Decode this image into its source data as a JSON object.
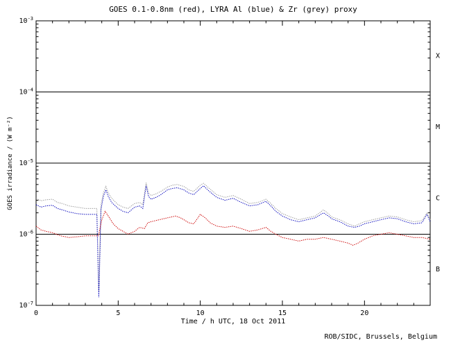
{
  "footer": {
    "text": "ROB/SIDC, Brussels, Belgium"
  },
  "chart_data": {
    "type": "line",
    "title": "GOES 0.1-0.8nm (red), LYRA Al (blue) & Zr (grey) proxy",
    "xlabel": "Time / h UTC, 18 Oct 2011",
    "ylabel": "GOES irradiance / (W m⁻²)",
    "x_range": [
      0,
      24
    ],
    "y_range": [
      1e-07,
      0.001
    ],
    "y_scale": "log",
    "grid": false,
    "x_ticks_major": [
      0,
      5,
      10,
      15,
      20
    ],
    "x_tick_labels": [
      "0",
      "5",
      "10",
      "15",
      "20"
    ],
    "x_minor_step": 1,
    "y_tick_exponents": [
      -3,
      -4,
      -5,
      -6,
      -7
    ],
    "class_boundaries": [
      0.0001,
      1e-05,
      1e-06
    ],
    "class_labels": [
      {
        "label": "X",
        "y": 0.00032
      },
      {
        "label": "M",
        "y": 3.2e-05
      },
      {
        "label": "C",
        "y": 3.2e-06
      },
      {
        "label": "B",
        "y": 3.2e-07
      }
    ],
    "series": [
      {
        "name": "LYRA Zr proxy",
        "color": "#9a9a9a",
        "points": [
          [
            0,
            3.2e-06
          ],
          [
            0.3,
            2.95e-06
          ],
          [
            0.6,
            3.05e-06
          ],
          [
            1,
            3.1e-06
          ],
          [
            1.3,
            2.8e-06
          ],
          [
            1.6,
            2.7e-06
          ],
          [
            2,
            2.5e-06
          ],
          [
            2.5,
            2.4e-06
          ],
          [
            3,
            2.3e-06
          ],
          [
            3.4,
            2.3e-06
          ],
          [
            3.7,
            2.3e-06
          ],
          [
            3.78,
            4e-07
          ],
          [
            3.82,
            1.6e-07
          ],
          [
            3.86,
            4e-07
          ],
          [
            3.95,
            2.6e-06
          ],
          [
            4.1,
            3.8e-06
          ],
          [
            4.25,
            4.7e-06
          ],
          [
            4.4,
            3.8e-06
          ],
          [
            4.6,
            3.2e-06
          ],
          [
            5,
            2.6e-06
          ],
          [
            5.3,
            2.4e-06
          ],
          [
            5.6,
            2.3e-06
          ],
          [
            6,
            2.7e-06
          ],
          [
            6.3,
            2.8e-06
          ],
          [
            6.5,
            2.6e-06
          ],
          [
            6.7,
            5.3e-06
          ],
          [
            6.85,
            3.8e-06
          ],
          [
            7,
            3.5e-06
          ],
          [
            7.3,
            3.7e-06
          ],
          [
            7.6,
            4e-06
          ],
          [
            8,
            4.6e-06
          ],
          [
            8.3,
            4.9e-06
          ],
          [
            8.6,
            5e-06
          ],
          [
            9,
            4.7e-06
          ],
          [
            9.3,
            4.2e-06
          ],
          [
            9.6,
            4e-06
          ],
          [
            10,
            4.9e-06
          ],
          [
            10.2,
            5.2e-06
          ],
          [
            10.5,
            4.5e-06
          ],
          [
            11,
            3.6e-06
          ],
          [
            11.5,
            3.3e-06
          ],
          [
            12,
            3.5e-06
          ],
          [
            12.5,
            3.1e-06
          ],
          [
            13,
            2.7e-06
          ],
          [
            13.5,
            2.8e-06
          ],
          [
            14,
            3.1e-06
          ],
          [
            14.3,
            2.7e-06
          ],
          [
            14.6,
            2.3e-06
          ],
          [
            15,
            1.95e-06
          ],
          [
            15.5,
            1.75e-06
          ],
          [
            16,
            1.6e-06
          ],
          [
            16.5,
            1.7e-06
          ],
          [
            17,
            1.8e-06
          ],
          [
            17.5,
            2.2e-06
          ],
          [
            17.8,
            1.95e-06
          ],
          [
            18,
            1.75e-06
          ],
          [
            18.5,
            1.6e-06
          ],
          [
            19,
            1.4e-06
          ],
          [
            19.4,
            1.3e-06
          ],
          [
            19.7,
            1.4e-06
          ],
          [
            20,
            1.5e-06
          ],
          [
            20.5,
            1.6e-06
          ],
          [
            21,
            1.7e-06
          ],
          [
            21.5,
            1.8e-06
          ],
          [
            22,
            1.75e-06
          ],
          [
            22.5,
            1.6e-06
          ],
          [
            23,
            1.5e-06
          ],
          [
            23.5,
            1.55e-06
          ],
          [
            23.8,
            2e-06
          ],
          [
            24,
            1.6e-06
          ]
        ]
      },
      {
        "name": "LYRA Al proxy",
        "color": "#0000bb",
        "points": [
          [
            0,
            2.6e-06
          ],
          [
            0.3,
            2.4e-06
          ],
          [
            0.6,
            2.5e-06
          ],
          [
            1,
            2.55e-06
          ],
          [
            1.3,
            2.3e-06
          ],
          [
            1.6,
            2.2e-06
          ],
          [
            2,
            2.05e-06
          ],
          [
            2.5,
            1.95e-06
          ],
          [
            3,
            1.9e-06
          ],
          [
            3.4,
            1.9e-06
          ],
          [
            3.7,
            1.9e-06
          ],
          [
            3.78,
            3e-07
          ],
          [
            3.82,
            1.3e-07
          ],
          [
            3.86,
            3e-07
          ],
          [
            3.95,
            2.2e-06
          ],
          [
            4.1,
            3.4e-06
          ],
          [
            4.25,
            4.2e-06
          ],
          [
            4.4,
            3.4e-06
          ],
          [
            4.6,
            2.8e-06
          ],
          [
            5,
            2.3e-06
          ],
          [
            5.3,
            2.1e-06
          ],
          [
            5.6,
            2e-06
          ],
          [
            6,
            2.4e-06
          ],
          [
            6.3,
            2.5e-06
          ],
          [
            6.5,
            2.3e-06
          ],
          [
            6.7,
            4.8e-06
          ],
          [
            6.85,
            3.4e-06
          ],
          [
            7,
            3.1e-06
          ],
          [
            7.3,
            3.3e-06
          ],
          [
            7.6,
            3.6e-06
          ],
          [
            8,
            4.2e-06
          ],
          [
            8.3,
            4.4e-06
          ],
          [
            8.6,
            4.5e-06
          ],
          [
            9,
            4.2e-06
          ],
          [
            9.3,
            3.8e-06
          ],
          [
            9.6,
            3.6e-06
          ],
          [
            10,
            4.4e-06
          ],
          [
            10.2,
            4.8e-06
          ],
          [
            10.5,
            4.1e-06
          ],
          [
            11,
            3.3e-06
          ],
          [
            11.5,
            3e-06
          ],
          [
            12,
            3.2e-06
          ],
          [
            12.5,
            2.8e-06
          ],
          [
            13,
            2.5e-06
          ],
          [
            13.5,
            2.6e-06
          ],
          [
            14,
            2.9e-06
          ],
          [
            14.3,
            2.5e-06
          ],
          [
            14.6,
            2.1e-06
          ],
          [
            15,
            1.8e-06
          ],
          [
            15.5,
            1.6e-06
          ],
          [
            16,
            1.5e-06
          ],
          [
            16.5,
            1.6e-06
          ],
          [
            17,
            1.7e-06
          ],
          [
            17.5,
            2e-06
          ],
          [
            17.8,
            1.8e-06
          ],
          [
            18,
            1.65e-06
          ],
          [
            18.5,
            1.5e-06
          ],
          [
            19,
            1.3e-06
          ],
          [
            19.4,
            1.25e-06
          ],
          [
            19.7,
            1.3e-06
          ],
          [
            20,
            1.4e-06
          ],
          [
            20.5,
            1.5e-06
          ],
          [
            21,
            1.6e-06
          ],
          [
            21.5,
            1.7e-06
          ],
          [
            22,
            1.65e-06
          ],
          [
            22.5,
            1.5e-06
          ],
          [
            23,
            1.4e-06
          ],
          [
            23.5,
            1.45e-06
          ],
          [
            23.8,
            1.9e-06
          ],
          [
            24,
            1.5e-06
          ]
        ]
      },
      {
        "name": "GOES 0.1-0.8nm",
        "color": "#cc0000",
        "points": [
          [
            0,
            1.3e-06
          ],
          [
            0.3,
            1.15e-06
          ],
          [
            0.6,
            1.1e-06
          ],
          [
            1,
            1.05e-06
          ],
          [
            1.5,
            9.5e-07
          ],
          [
            2,
            9e-07
          ],
          [
            2.5,
            9.2e-07
          ],
          [
            3,
            9.5e-07
          ],
          [
            3.5,
            9.5e-07
          ],
          [
            3.8,
            9.5e-07
          ],
          [
            4,
            1.6e-06
          ],
          [
            4.2,
            2.1e-06
          ],
          [
            4.4,
            1.8e-06
          ],
          [
            4.7,
            1.4e-06
          ],
          [
            5,
            1.2e-06
          ],
          [
            5.3,
            1.1e-06
          ],
          [
            5.6,
            1e-06
          ],
          [
            6,
            1.1e-06
          ],
          [
            6.3,
            1.25e-06
          ],
          [
            6.6,
            1.2e-06
          ],
          [
            6.8,
            1.45e-06
          ],
          [
            7,
            1.5e-06
          ],
          [
            7.5,
            1.6e-06
          ],
          [
            8,
            1.7e-06
          ],
          [
            8.5,
            1.8e-06
          ],
          [
            8.8,
            1.7e-06
          ],
          [
            9,
            1.6e-06
          ],
          [
            9.3,
            1.45e-06
          ],
          [
            9.6,
            1.4e-06
          ],
          [
            10,
            1.9e-06
          ],
          [
            10.3,
            1.7e-06
          ],
          [
            10.6,
            1.45e-06
          ],
          [
            11,
            1.3e-06
          ],
          [
            11.5,
            1.25e-06
          ],
          [
            12,
            1.3e-06
          ],
          [
            12.5,
            1.2e-06
          ],
          [
            13,
            1.1e-06
          ],
          [
            13.5,
            1.15e-06
          ],
          [
            14,
            1.25e-06
          ],
          [
            14.3,
            1.1e-06
          ],
          [
            14.6,
            1e-06
          ],
          [
            15,
            9e-07
          ],
          [
            15.5,
            8.5e-07
          ],
          [
            16,
            8e-07
          ],
          [
            16.5,
            8.5e-07
          ],
          [
            17,
            8.5e-07
          ],
          [
            17.5,
            9e-07
          ],
          [
            18,
            8.5e-07
          ],
          [
            18.5,
            8e-07
          ],
          [
            19,
            7.5e-07
          ],
          [
            19.3,
            7e-07
          ],
          [
            19.6,
            7.5e-07
          ],
          [
            20,
            8.5e-07
          ],
          [
            20.5,
            9.5e-07
          ],
          [
            21,
            1e-06
          ],
          [
            21.5,
            1.05e-06
          ],
          [
            22,
            1e-06
          ],
          [
            22.5,
            9.5e-07
          ],
          [
            23,
            9e-07
          ],
          [
            23.5,
            9e-07
          ],
          [
            24,
            8.5e-07
          ]
        ]
      }
    ]
  }
}
